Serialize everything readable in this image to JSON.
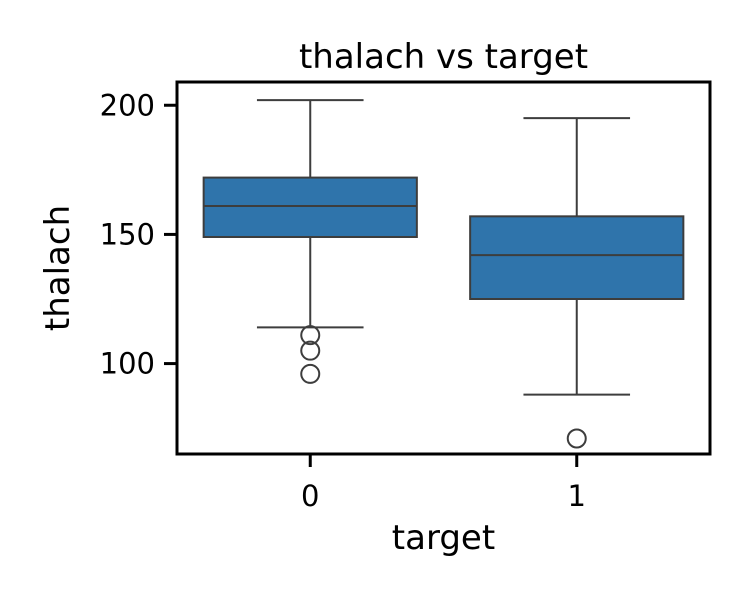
{
  "chart_data": {
    "type": "box",
    "title": "thalach vs target",
    "xlabel": "target",
    "ylabel": "thalach",
    "categories": [
      "0",
      "1"
    ],
    "ylim": [
      65,
      209
    ],
    "yticks": [
      100,
      150,
      200
    ],
    "grid": false,
    "box_color": "#2f74ab",
    "line_color": "#3d3d3d",
    "boxes": [
      {
        "category": "0",
        "whisker_low": 114,
        "q1": 149,
        "median": 161,
        "q3": 172,
        "whisker_high": 202,
        "outliers": [
          111,
          105,
          96
        ]
      },
      {
        "category": "1",
        "whisker_low": 88,
        "q1": 125,
        "median": 142,
        "q3": 157,
        "whisker_high": 195,
        "outliers": [
          71
        ]
      }
    ]
  }
}
